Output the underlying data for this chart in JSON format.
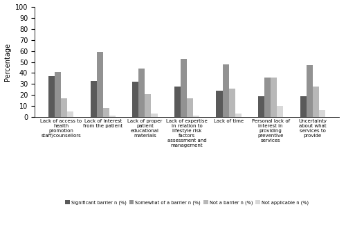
{
  "categories": [
    "Lack of access to\nhealth\npromotion\nstaff/counsellors",
    "Lack of interest\nfrom the patient",
    "Lack of proper\npatient\neducational\nmaterials",
    "Lack of expertise\nin relation to\nlifestyle risk\nfactors\nassessment and\nmanagement",
    "Lack of time",
    "Personal lack of\ninterest in\nproviding\npreventive\nservices",
    "Uncertainty\nabout what\nservices to\nprovide"
  ],
  "series": {
    "Significant barrier n (%)": [
      37,
      33,
      32,
      28,
      24,
      19,
      19
    ],
    "Somewhat of a barrier n (%)": [
      41,
      59,
      44,
      53,
      48,
      36,
      47
    ],
    "Not a barrier n (%)": [
      17,
      8,
      21,
      17,
      26,
      36,
      28
    ],
    "Not applicable n (%)": [
      5,
      1,
      3,
      1,
      3,
      10,
      6
    ]
  },
  "colors": [
    "#5a5a5a",
    "#929292",
    "#b8b8b8",
    "#d8d8d8"
  ],
  "ylabel": "Percentage",
  "ylim": [
    0,
    100
  ],
  "yticks": [
    0,
    10,
    20,
    30,
    40,
    50,
    60,
    70,
    80,
    90,
    100
  ],
  "legend_labels": [
    "Significant barrier n (%)",
    "Somewhat of a barrier n (%)",
    "Not a barrier n (%)",
    "Not applicable n (%)"
  ],
  "bar_width": 0.15,
  "figsize": [
    5.0,
    3.38
  ],
  "dpi": 100
}
